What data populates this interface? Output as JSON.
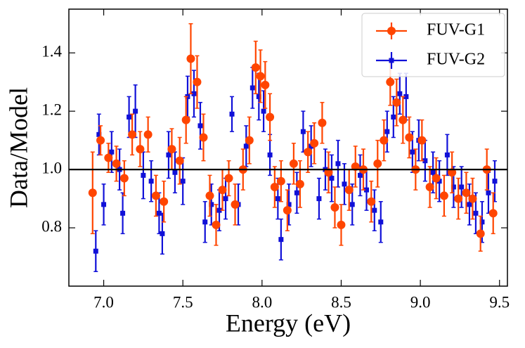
{
  "chart_data": {
    "type": "errorbar-scatter",
    "xlabel": "Energy (eV)",
    "ylabel": "Data/Model",
    "xlim": [
      6.78,
      9.55
    ],
    "ylim": [
      0.6,
      1.55
    ],
    "xticks": [
      {
        "value": 7,
        "label": "7.0"
      },
      7.5,
      {
        "value": 8,
        "label": "8.0"
      },
      8.5,
      {
        "value": 9,
        "label": "9.0"
      },
      9.5
    ],
    "yticks": [
      0.8,
      {
        "value": 1,
        "label": "1.0"
      },
      1.2,
      1.4
    ],
    "reference_line": 1,
    "legend": "upper right",
    "series": [
      {
        "name": "FUV-G1",
        "color": "#ff4500",
        "marker": "circle",
        "x": [
          6.93,
          6.98,
          7.03,
          7.08,
          7.13,
          7.18,
          7.23,
          7.28,
          7.33,
          7.38,
          7.43,
          7.48,
          7.52,
          7.55,
          7.59,
          7.63,
          7.67,
          7.71,
          7.75,
          7.79,
          7.83,
          7.88,
          7.92,
          7.96,
          7.99,
          8.02,
          8.05,
          8.08,
          8.12,
          8.16,
          8.2,
          8.24,
          8.29,
          8.33,
          8.38,
          8.42,
          8.46,
          8.5,
          8.55,
          8.59,
          8.64,
          8.69,
          8.73,
          8.77,
          8.81,
          8.85,
          8.89,
          8.93,
          8.97,
          9.01,
          9.06,
          9.1,
          9.15,
          9.2,
          9.24,
          9.29,
          9.33,
          9.38,
          9.42,
          9.46
        ],
        "values": [
          0.92,
          1.1,
          1.04,
          1.02,
          0.97,
          1.12,
          1.07,
          1.12,
          0.91,
          0.89,
          1.07,
          1.03,
          1.17,
          1.38,
          1.3,
          1.11,
          0.91,
          0.81,
          0.93,
          0.97,
          0.88,
          1.0,
          1.1,
          1.35,
          1.32,
          1.29,
          1.18,
          0.94,
          0.96,
          0.86,
          1.02,
          0.95,
          1.06,
          1.09,
          1.16,
          0.99,
          0.87,
          0.81,
          0.93,
          1.01,
          1.0,
          0.89,
          1.02,
          1.1,
          1.3,
          1.23,
          1.17,
          1.11,
          1.0,
          1.1,
          0.94,
          0.97,
          0.91,
          0.99,
          0.9,
          0.92,
          0.9,
          0.78,
          1.0,
          0.85
        ],
        "errors": [
          0.14,
          0.05,
          0.05,
          0.06,
          0.06,
          0.07,
          0.06,
          0.06,
          0.07,
          0.07,
          0.07,
          0.08,
          0.08,
          0.12,
          0.09,
          0.08,
          0.07,
          0.07,
          0.07,
          0.06,
          0.07,
          0.07,
          0.08,
          0.09,
          0.09,
          0.08,
          0.08,
          0.07,
          0.07,
          0.07,
          0.07,
          0.08,
          0.07,
          0.07,
          0.07,
          0.07,
          0.07,
          0.07,
          0.07,
          0.07,
          0.07,
          0.07,
          0.08,
          0.07,
          0.08,
          0.08,
          0.08,
          0.07,
          0.07,
          0.07,
          0.07,
          0.07,
          0.07,
          0.07,
          0.07,
          0.07,
          0.07,
          0.06,
          0.07,
          0.07
        ]
      },
      {
        "name": "FUV-G2",
        "color": "#1010d8",
        "marker": "square",
        "x": [
          6.95,
          6.97,
          7.0,
          7.05,
          7.1,
          7.12,
          7.16,
          7.2,
          7.25,
          7.3,
          7.35,
          7.37,
          7.41,
          7.45,
          7.5,
          7.53,
          7.57,
          7.61,
          7.64,
          7.68,
          7.73,
          7.77,
          7.81,
          7.85,
          7.9,
          7.94,
          7.98,
          8.01,
          8.05,
          8.1,
          8.12,
          8.17,
          8.22,
          8.26,
          8.31,
          8.36,
          8.4,
          8.44,
          8.48,
          8.52,
          8.57,
          8.62,
          8.66,
          8.71,
          8.75,
          8.79,
          8.83,
          8.87,
          8.91,
          8.95,
          8.99,
          9.03,
          9.08,
          9.12,
          9.17,
          9.21,
          9.26,
          9.31,
          9.35,
          9.39,
          9.43,
          9.47
        ],
        "values": [
          0.72,
          1.12,
          0.88,
          1.06,
          1.0,
          0.85,
          1.18,
          1.2,
          0.98,
          0.96,
          0.85,
          0.78,
          1.05,
          0.99,
          0.96,
          1.25,
          1.26,
          1.15,
          0.82,
          0.88,
          0.86,
          0.9,
          1.19,
          0.88,
          1.08,
          1.28,
          1.25,
          1.2,
          1.05,
          0.9,
          0.76,
          0.88,
          0.92,
          1.13,
          1.08,
          0.9,
          1.0,
          0.97,
          1.02,
          0.95,
          0.88,
          0.98,
          0.93,
          0.86,
          0.82,
          1.13,
          1.18,
          1.26,
          1.25,
          1.06,
          1.1,
          1.03,
          0.99,
          0.96,
          1.05,
          0.94,
          0.94,
          0.88,
          0.85,
          0.82,
          0.92,
          0.96
        ],
        "errors": [
          0.07,
          0.07,
          0.07,
          0.07,
          0.07,
          0.07,
          0.07,
          0.09,
          0.08,
          0.07,
          0.07,
          0.07,
          0.08,
          0.07,
          0.08,
          0.07,
          0.08,
          0.08,
          0.07,
          0.07,
          0.07,
          0.07,
          0.06,
          0.07,
          0.07,
          0.07,
          0.08,
          0.07,
          0.07,
          0.07,
          0.07,
          0.07,
          0.07,
          0.07,
          0.07,
          0.07,
          0.07,
          0.08,
          0.08,
          0.07,
          0.07,
          0.07,
          0.07,
          0.07,
          0.07,
          0.07,
          0.07,
          0.07,
          0.08,
          0.07,
          0.07,
          0.07,
          0.07,
          0.07,
          0.07,
          0.07,
          0.07,
          0.07,
          0.07,
          0.07,
          0.07,
          0.07
        ]
      }
    ]
  }
}
